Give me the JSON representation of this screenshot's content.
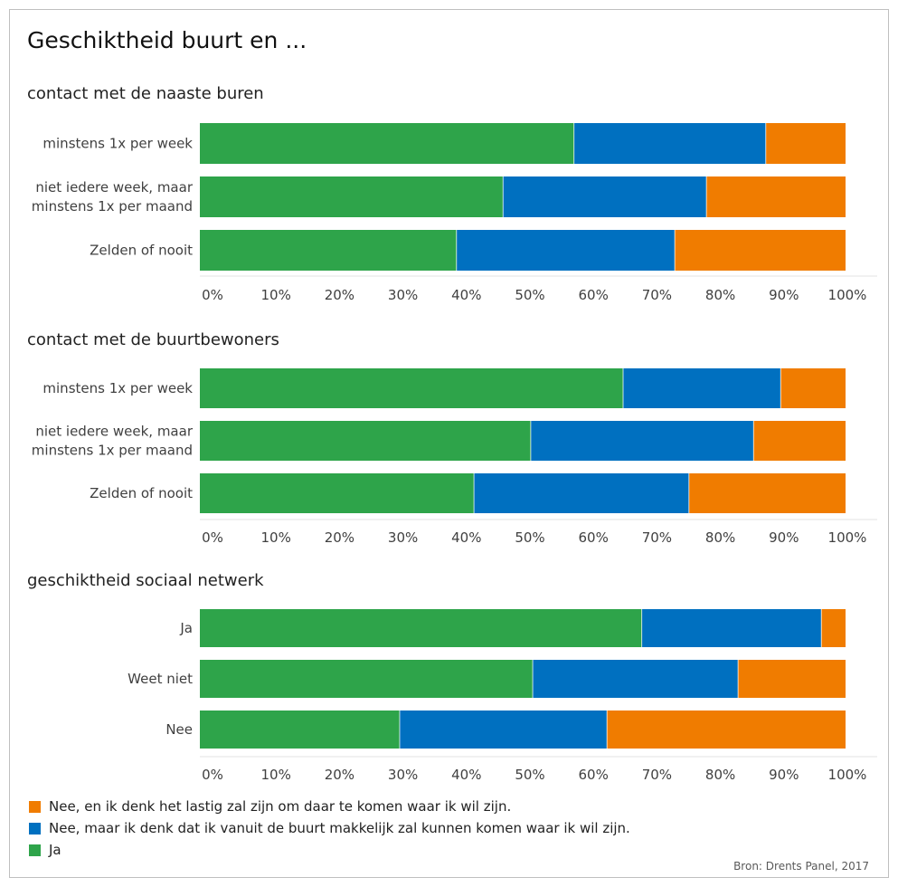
{
  "title": "Geschiktheid buurt en ...",
  "source": "Bron: Drents Panel, 2017",
  "chart_data": {
    "type": "bar",
    "orientation": "horizontal",
    "stacked": "percent",
    "xlim": [
      0,
      100
    ],
    "x_ticks": [
      "0%",
      "10%",
      "20%",
      "30%",
      "40%",
      "50%",
      "60%",
      "70%",
      "80%",
      "90%",
      "100%"
    ],
    "legend": [
      {
        "name": "Nee, en ik denk het lastig zal zijn om daar te komen waar ik wil zijn.",
        "color": "#f07c00"
      },
      {
        "name": "Nee, maar ik denk dat ik vanuit de buurt makkelijk zal kunnen komen waar ik wil zijn.",
        "color": "#0070c0"
      },
      {
        "name": "Ja",
        "color": "#2ea44a"
      }
    ],
    "legend_position": "bottom",
    "panels": [
      {
        "subtitle": "contact met de naaste buren",
        "categories": [
          [
            "minstens 1x per week"
          ],
          [
            "niet iedere week, maar",
            "minstens 1x per maand"
          ],
          [
            "Zelden of nooit"
          ]
        ],
        "values": [
          [
            58,
            29.7,
            12.3
          ],
          [
            47,
            31.5,
            21.5
          ],
          [
            39.8,
            33.8,
            26.4
          ]
        ]
      },
      {
        "subtitle": "contact met de buurtbewoners",
        "categories": [
          [
            "minstens 1x per week"
          ],
          [
            "niet iedere week, maar",
            "minstens 1x per maand"
          ],
          [
            "Zelden of nooit"
          ]
        ],
        "values": [
          [
            65.6,
            24.4,
            10
          ],
          [
            51.3,
            34.5,
            14.2
          ],
          [
            42.5,
            33.3,
            24.2
          ]
        ]
      },
      {
        "subtitle": "geschiktheid sociaal netwerk",
        "categories": [
          [
            "Ja"
          ],
          [
            "Weet niet"
          ],
          [
            "Nee"
          ]
        ],
        "values": [
          [
            68.5,
            27.8,
            3.7
          ],
          [
            51.6,
            31.8,
            16.6
          ],
          [
            31,
            32.1,
            36.9
          ]
        ]
      }
    ]
  }
}
